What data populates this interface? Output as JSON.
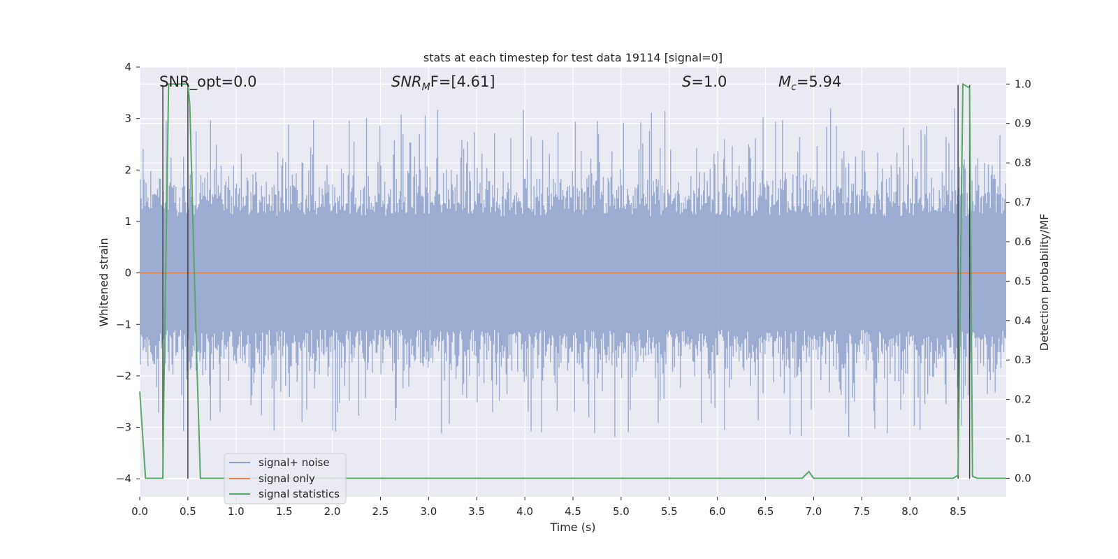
{
  "chart_data": {
    "type": "line",
    "title": "stats at each timestep for test data 19114 [signal=0]",
    "xlabel": "Time (s)",
    "ylabel_left": "Whitened strain",
    "ylabel_right": "Detection probability/MF",
    "xlim": [
      0.0,
      9.0
    ],
    "ylim_left": [
      -4.35,
      4.0
    ],
    "ylim_right": [
      -0.047,
      1.043
    ],
    "xticks": [
      "0.0",
      "0.5",
      "1.0",
      "1.5",
      "2.0",
      "2.5",
      "3.0",
      "3.5",
      "4.0",
      "4.5",
      "5.0",
      "5.5",
      "6.0",
      "6.5",
      "7.0",
      "7.5",
      "8.0",
      "8.5"
    ],
    "yticks_left": [
      "4",
      "3",
      "2",
      "1",
      "0",
      "−1",
      "−2",
      "−3",
      "−4"
    ],
    "yticks_right": [
      "1.0",
      "0.9",
      "0.8",
      "0.7",
      "0.6",
      "0.5",
      "0.4",
      "0.3",
      "0.2",
      "0.1",
      "0.0"
    ],
    "grid": true,
    "legend_position": "lower-left",
    "annotations": {
      "snr_opt": "SNR_opt=0.0",
      "snr_mf_main": "SNR",
      "snr_mf_sub": "M",
      "snr_mf_rest": "F=[4.61]",
      "s_main": "S",
      "s_rest": "=1.0",
      "mc_main": "M",
      "mc_sub": "c",
      "mc_rest": "=5.94"
    },
    "series": [
      {
        "name": "signal+ noise",
        "color": "#8da0cb",
        "description_level": "noise band approx ±1.5 with spikes up to ±3.7"
      },
      {
        "name": "signal only",
        "color": "#dd8452",
        "values_y": 0.0
      },
      {
        "name": "signal statistics",
        "color": "#55a868",
        "x": [
          0.0,
          0.06,
          0.24,
          0.25,
          0.3,
          0.33,
          0.5,
          0.52,
          0.58,
          0.63,
          0.7,
          6.88,
          6.95,
          7.0,
          8.45,
          8.5,
          8.55,
          8.62,
          8.65,
          8.7,
          9.0
        ],
        "y": [
          0.22,
          0.0,
          0.0,
          0.2,
          1.0,
          1.0,
          1.0,
          0.95,
          0.4,
          0.0,
          0.0,
          0.0,
          0.017,
          0.0,
          0.0,
          0.008,
          1.0,
          0.99,
          0.005,
          0.0,
          0.0
        ]
      }
    ],
    "vertical_markers_x": [
      0.24,
      0.5,
      8.5,
      8.62
    ],
    "colors": {
      "plot_bg": "#eaeaf2",
      "grid": "#ffffff",
      "noise": "#8da0cb",
      "signal_only": "#dd8452",
      "stats": "#55a868",
      "marker": "#444444"
    }
  }
}
